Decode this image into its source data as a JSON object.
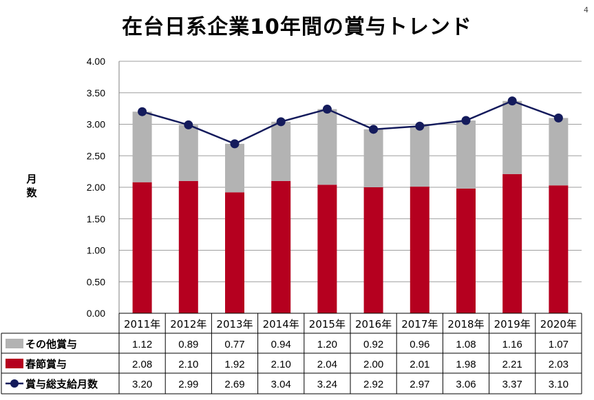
{
  "title": "在台日系企業10年間の賞与トレンド",
  "page_number": "4",
  "y_axis_title": [
    "月",
    "数"
  ],
  "colors": {
    "other_bonus": "#b3b3b3",
    "spring_bonus": "#b5001f",
    "total": "#141b5c",
    "grid": "#9e9e9e",
    "axis": "#7f7f7f"
  },
  "chart_data": {
    "type": "bar",
    "stacked": true,
    "title": "在台日系企業10年間の賞与トレンド",
    "ylabel": "月数",
    "ylim": [
      0,
      4
    ],
    "yticks": [
      "0.00",
      "0.50",
      "1.00",
      "1.50",
      "2.00",
      "2.50",
      "3.00",
      "3.50",
      "4.00"
    ],
    "grid": true,
    "categories": [
      "2011年",
      "2012年",
      "2013年",
      "2014年",
      "2015年",
      "2016年",
      "2017年",
      "2018年",
      "2019年",
      "2020年"
    ],
    "series": [
      {
        "name": "その他賞与",
        "type": "bar",
        "values": [
          1.12,
          0.89,
          0.77,
          0.94,
          1.2,
          0.92,
          0.96,
          1.08,
          1.16,
          1.07
        ],
        "labels": [
          "1.12",
          "0.89",
          "0.77",
          "0.94",
          "1.20",
          "0.92",
          "0.96",
          "1.08",
          "1.16",
          "1.07"
        ]
      },
      {
        "name": "春節賞与",
        "type": "bar",
        "values": [
          2.08,
          2.1,
          1.92,
          2.1,
          2.04,
          2.0,
          2.01,
          1.98,
          2.21,
          2.03
        ],
        "labels": [
          "2.08",
          "2.10",
          "1.92",
          "2.10",
          "2.04",
          "2.00",
          "2.01",
          "1.98",
          "2.21",
          "2.03"
        ]
      },
      {
        "name": "賞与総支給月数",
        "type": "line",
        "values": [
          3.2,
          2.99,
          2.69,
          3.04,
          3.24,
          2.92,
          2.97,
          3.06,
          3.37,
          3.1
        ],
        "labels": [
          "3.20",
          "2.99",
          "2.69",
          "3.04",
          "3.24",
          "2.92",
          "2.97",
          "3.06",
          "3.37",
          "3.10"
        ]
      }
    ],
    "data_table": true
  }
}
